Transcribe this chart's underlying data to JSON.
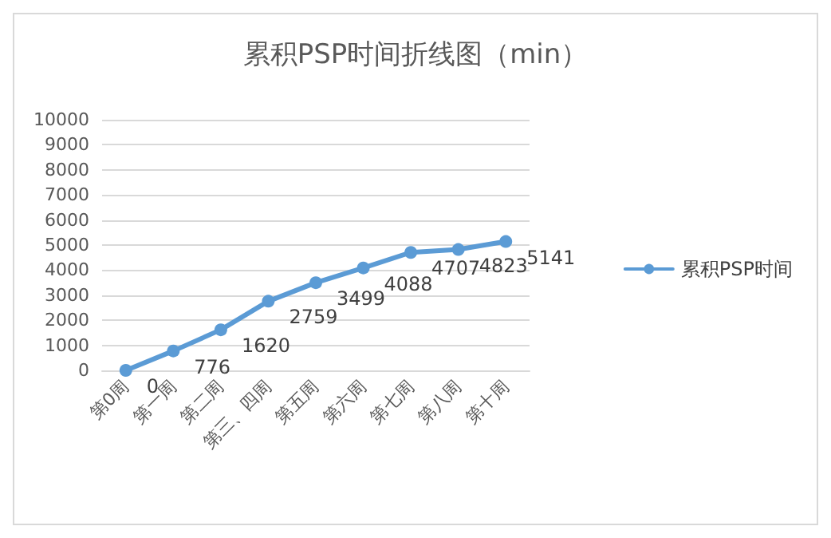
{
  "chart_data": {
    "type": "line",
    "title": "累积PSP时间折线图（min）",
    "categories": [
      "第0周",
      "第一周",
      "第二周",
      "第三、四周",
      "第五周",
      "第六周",
      "第七周",
      "第八周",
      "第十周"
    ],
    "series": [
      {
        "name": "累积PSP时间",
        "color": "#5b9bd5",
        "values": [
          0,
          776,
          1620,
          2759,
          3499,
          4088,
          4707,
          4823,
          5141
        ]
      }
    ],
    "ylim": [
      0,
      10000
    ],
    "yticks": [
      0,
      1000,
      2000,
      3000,
      4000,
      5000,
      6000,
      7000,
      8000,
      9000,
      10000
    ],
    "grid": "y",
    "legend": "right",
    "marker": "circle",
    "line_style": "solid",
    "data_labels": true
  }
}
